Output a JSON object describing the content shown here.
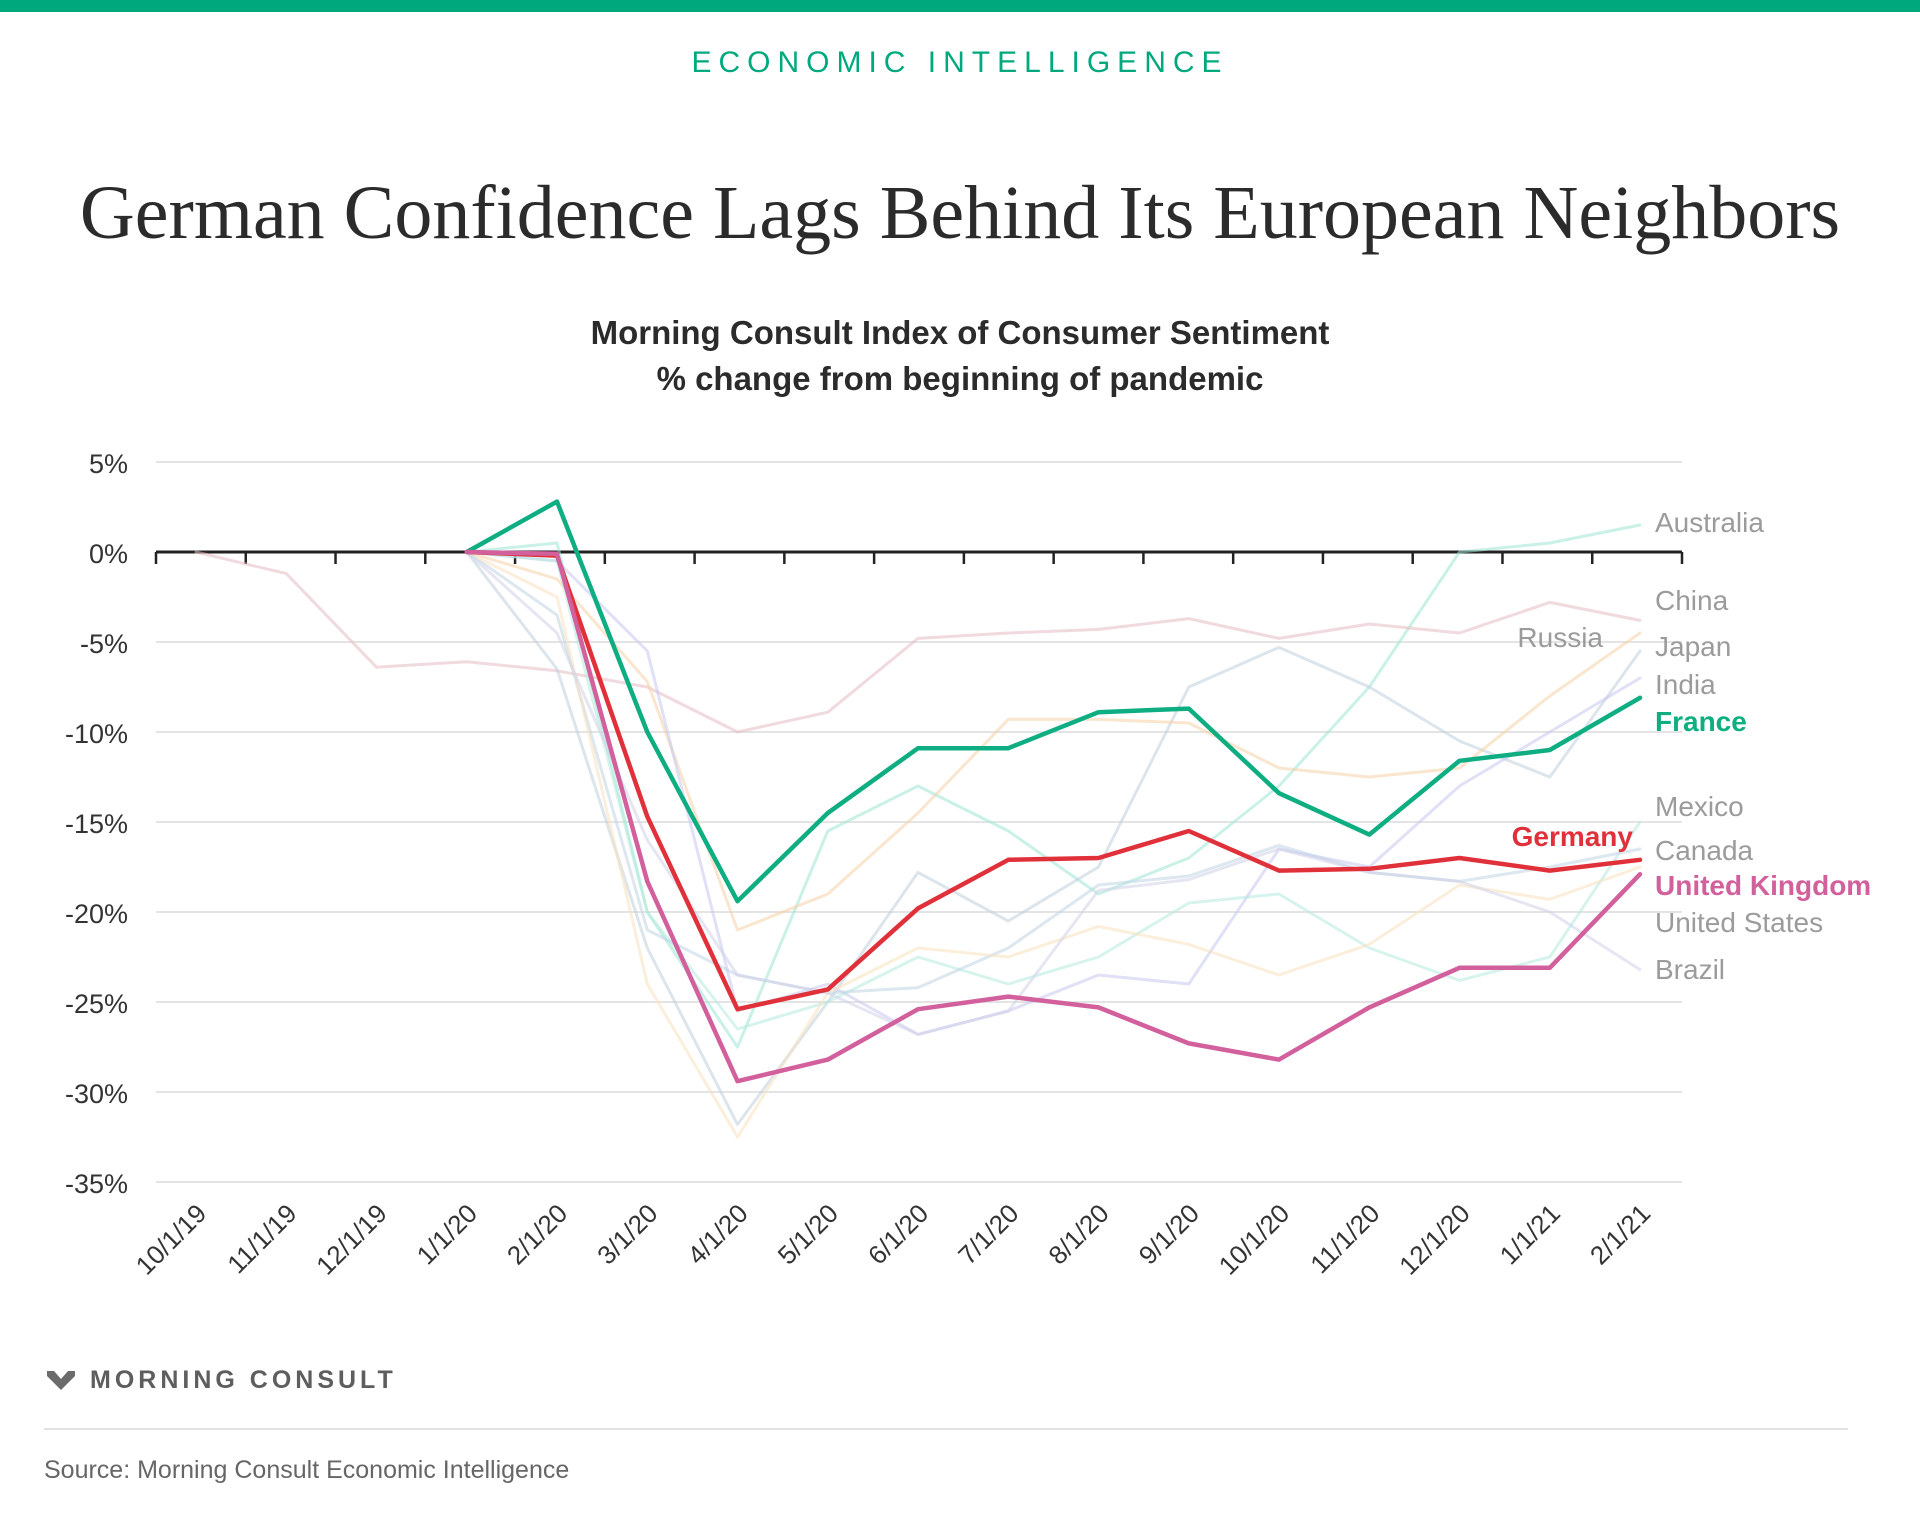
{
  "header": {
    "kicker": "ECONOMIC INTELLIGENCE",
    "headline": "German Confidence Lags Behind Its European Neighbors"
  },
  "footer": {
    "brand": "MORNING CONSULT",
    "source": "Source: Morning Consult Economic Intelligence"
  },
  "colors": {
    "accent": "#00a87e",
    "france": "#0fae82",
    "germany": "#e0313b",
    "united_kingdom": "#d2609c",
    "muted_label": "#9b9b9b"
  },
  "chart_data": {
    "type": "line",
    "title": "Morning Consult Index of Consumer Sentiment",
    "subtitle": "% change from beginning of pandemic",
    "categories": [
      "10/1/19",
      "11/1/19",
      "12/1/19",
      "1/1/20",
      "2/1/20",
      "3/1/20",
      "4/1/20",
      "5/1/20",
      "6/1/20",
      "7/1/20",
      "8/1/20",
      "9/1/20",
      "10/1/20",
      "11/1/20",
      "12/1/20",
      "1/1/21",
      "2/1/21"
    ],
    "y_ticks": [
      "5%",
      "0%",
      "-5%",
      "-10%",
      "-15%",
      "-20%",
      "-25%",
      "-30%",
      "-35%"
    ],
    "ylim": [
      -35,
      5
    ],
    "unit": "%",
    "grid": true,
    "legend": "direct labels at right end of lines",
    "series": [
      {
        "name": "Australia",
        "color": "#9ee6d4",
        "highlight": false,
        "values": [
          null,
          null,
          null,
          0,
          0.5,
          -20,
          -27.5,
          -15.5,
          -13,
          -15.5,
          -19,
          -17,
          -13,
          -7.5,
          0,
          0.5,
          1.5
        ]
      },
      {
        "name": "China",
        "color": "#e6bcc3",
        "highlight": false,
        "values": [
          0,
          -1.2,
          -6.4,
          -6.1,
          -6.6,
          -7.5,
          -10,
          -8.9,
          -4.8,
          -4.5,
          -4.3,
          -3.7,
          -4.8,
          -4,
          -4.5,
          -2.8,
          -3.8
        ]
      },
      {
        "name": "Russia",
        "color": "#c0d0dc",
        "highlight": false,
        "values": [
          null,
          null,
          null,
          0,
          -6.5,
          -22,
          -31.8,
          -25,
          -17.8,
          -20.5,
          -17.5,
          -7.5,
          -5.3,
          -7.5,
          -10.5,
          -12.5,
          -5.5
        ]
      },
      {
        "name": "Japan",
        "color": "#f5d2a8",
        "highlight": false,
        "values": [
          null,
          null,
          null,
          0,
          -1.5,
          -7.2,
          -21,
          -19,
          -14.5,
          -9.3,
          -9.3,
          -9.5,
          -12,
          -12.5,
          -12,
          -8,
          -4.5
        ]
      },
      {
        "name": "India",
        "color": "#c6c6ee",
        "highlight": false,
        "values": [
          null,
          null,
          null,
          0,
          -0.5,
          -5.5,
          -25.5,
          -24,
          -26.8,
          -25.5,
          -23.5,
          -24,
          -16.5,
          -17.5,
          -13,
          -10,
          -7
        ]
      },
      {
        "name": "France",
        "color": "#0fae82",
        "highlight": true,
        "values": [
          null,
          null,
          null,
          0,
          2.8,
          -10,
          -19.4,
          -14.5,
          -10.9,
          -10.9,
          -8.9,
          -8.7,
          -13.4,
          -15.7,
          -11.6,
          -11,
          -8.1
        ]
      },
      {
        "name": "Mexico",
        "color": "#b7e9de",
        "highlight": false,
        "values": [
          null,
          null,
          null,
          0,
          -0.5,
          -20,
          -26.5,
          -25,
          -22.5,
          -24,
          -22.5,
          -19.5,
          -19,
          -22,
          -23.8,
          -22.5,
          -15
        ]
      },
      {
        "name": "Germany",
        "color": "#e0313b",
        "highlight": true,
        "values": [
          null,
          null,
          null,
          0,
          -0.2,
          -14.7,
          -25.4,
          -24.3,
          -19.8,
          -17.1,
          -17,
          -15.5,
          -17.7,
          -17.6,
          -17,
          -17.7,
          -17.1
        ]
      },
      {
        "name": "Canada",
        "color": "#bfd4e4",
        "highlight": false,
        "values": [
          null,
          null,
          null,
          0,
          -3.5,
          -21,
          -23.5,
          -24.5,
          -24.2,
          -22,
          -18.5,
          -18,
          -16.3,
          -17.8,
          -18.3,
          -17.5,
          -16.5
        ]
      },
      {
        "name": "United Kingdom",
        "color": "#d2609c",
        "highlight": true,
        "values": [
          null,
          null,
          null,
          0,
          -0.1,
          -18.3,
          -29.4,
          -28.2,
          -25.4,
          -24.7,
          -25.3,
          -27.3,
          -28.2,
          -25.3,
          -23.1,
          -23.1,
          -17.9
        ]
      },
      {
        "name": "United States",
        "color": "#f7e2c0",
        "highlight": false,
        "values": [
          null,
          null,
          null,
          0,
          -2.5,
          -24,
          -32.5,
          -24.5,
          -22,
          -22.5,
          -20.8,
          -21.8,
          -23.5,
          -21.8,
          -18.5,
          -19.3,
          -17.5
        ]
      },
      {
        "name": "Brazil",
        "color": "#d2d2ea",
        "highlight": false,
        "values": [
          null,
          null,
          null,
          0,
          -4.5,
          -16,
          -23.5,
          -24.5,
          -26.8,
          -25.5,
          -18.8,
          -18.2,
          -16.5,
          -17.8,
          -18.3,
          -20,
          -23.2
        ]
      }
    ]
  }
}
